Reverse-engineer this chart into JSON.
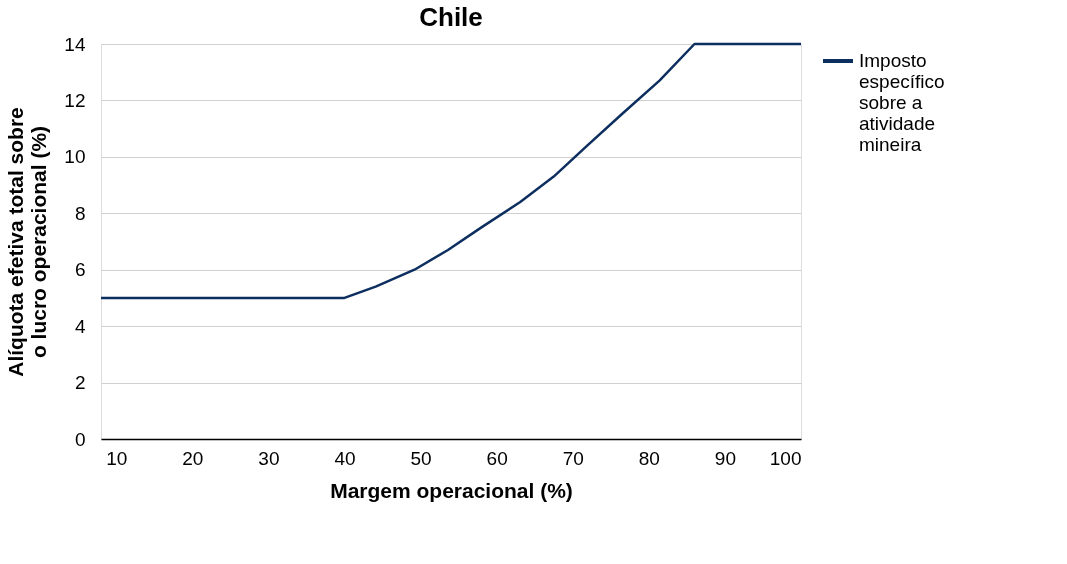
{
  "chart_data": {
    "type": "line",
    "title": "Chile",
    "xlabel": "Margem operacional (%)",
    "ylabel": "Alíquota efetiva total sobre o lucro operacional (%)",
    "x": [
      8,
      40,
      44.1,
      49.2,
      53.6,
      58,
      63.1,
      67.5,
      71.9,
      76.4,
      81.4,
      86,
      100
    ],
    "series": [
      {
        "name": "Imposto específico sobre a atividade mineira",
        "color": "#0d2f5f",
        "values": [
          5,
          5,
          5.4,
          6,
          6.7,
          7.5,
          8.4,
          9.3,
          10.4,
          11.5,
          12.7,
          14,
          14
        ]
      }
    ],
    "xlim": [
      8,
      100
    ],
    "xticks": [
      10,
      20,
      30,
      40,
      50,
      60,
      70,
      80,
      90,
      100
    ],
    "ylim": [
      0,
      14
    ],
    "yticks": [
      0,
      2,
      4,
      6,
      8,
      10,
      12,
      14
    ],
    "grid": "y",
    "legend": "right",
    "marker": "none",
    "line_style": "solid"
  }
}
